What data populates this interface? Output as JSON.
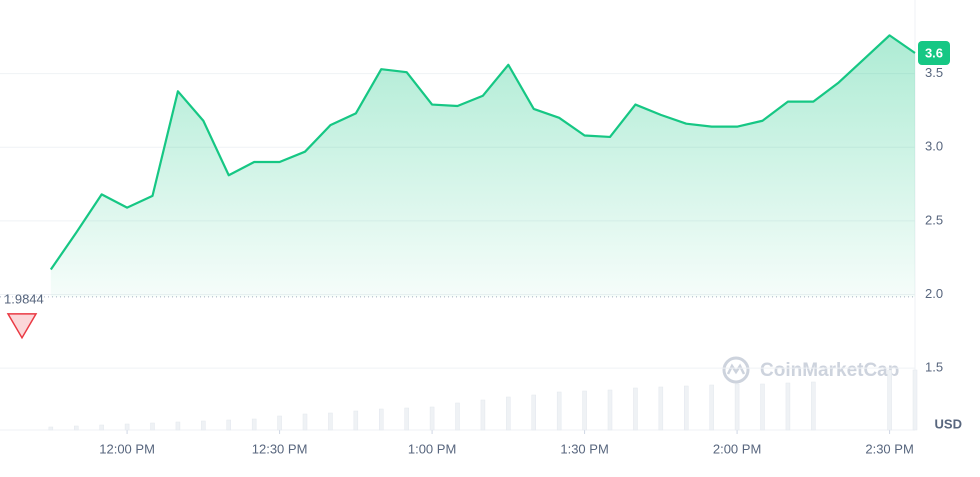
{
  "chart_data": {
    "type": "line",
    "x": [
      "11:45 AM",
      "11:50 AM",
      "11:55 AM",
      "12:00 PM",
      "12:05 PM",
      "12:10 PM",
      "12:15 PM",
      "12:20 PM",
      "12:25 PM",
      "12:30 PM",
      "12:35 PM",
      "12:40 PM",
      "12:45 PM",
      "12:50 PM",
      "12:55 PM",
      "1:00 PM",
      "1:05 PM",
      "1:10 PM",
      "1:15 PM",
      "1:20 PM",
      "1:25 PM",
      "1:30 PM",
      "1:35 PM",
      "1:40 PM",
      "1:45 PM",
      "1:50 PM",
      "1:55 PM",
      "2:00 PM",
      "2:05 PM",
      "2:10 PM",
      "2:15 PM",
      "2:20 PM",
      "2:25 PM",
      "2:30 PM",
      "2:35 PM"
    ],
    "series": [
      {
        "name": "Price",
        "color": "#16c784",
        "values": [
          2.17,
          2.42,
          2.68,
          2.59,
          2.67,
          3.38,
          3.18,
          2.81,
          2.9,
          2.9,
          2.97,
          3.15,
          3.23,
          3.53,
          3.51,
          3.29,
          3.28,
          3.35,
          3.56,
          3.26,
          3.2,
          3.08,
          3.07,
          3.29,
          3.22,
          3.16,
          3.14,
          3.14,
          3.18,
          3.31,
          3.31,
          3.44,
          3.6,
          3.76,
          3.64
        ],
        "value_labels": [
          null,
          null,
          null,
          null,
          null,
          null,
          null,
          null,
          null,
          null,
          null,
          null,
          null,
          null,
          null,
          null,
          null,
          null,
          null,
          null,
          null,
          null,
          null,
          null,
          null,
          null,
          null,
          null,
          null,
          null,
          null,
          null,
          null,
          null,
          "3.6"
        ]
      },
      {
        "name": "Volume",
        "color": "#eff2f5",
        "values": [
          3,
          4,
          5,
          6,
          7,
          8,
          9,
          10,
          11,
          14,
          16,
          17,
          19,
          21,
          22,
          23,
          27,
          30,
          33,
          35,
          38,
          39,
          40,
          42,
          43,
          44,
          45,
          46,
          46,
          47,
          48,
          null,
          null,
          60,
          60
        ]
      }
    ],
    "baseline": 1.9844,
    "xlim": [
      "11:35 AM",
      "2:35 PM"
    ],
    "xticks": [
      "12:00 PM",
      "12:30 PM",
      "1:00 PM",
      "1:30 PM",
      "2:00 PM",
      "2:30 PM"
    ],
    "ylim": [
      1.08,
      4.0
    ],
    "yticks": [
      {
        "value": 1.5,
        "label": "1.5"
      },
      {
        "value": 2,
        "label": "2.0"
      },
      {
        "value": 2.5,
        "label": "2.5"
      },
      {
        "value": 3,
        "label": "3.0"
      },
      {
        "value": 3.5,
        "label": "3.5"
      }
    ],
    "currency": "USD",
    "watermark": "CoinMarketCap",
    "grid": true
  }
}
